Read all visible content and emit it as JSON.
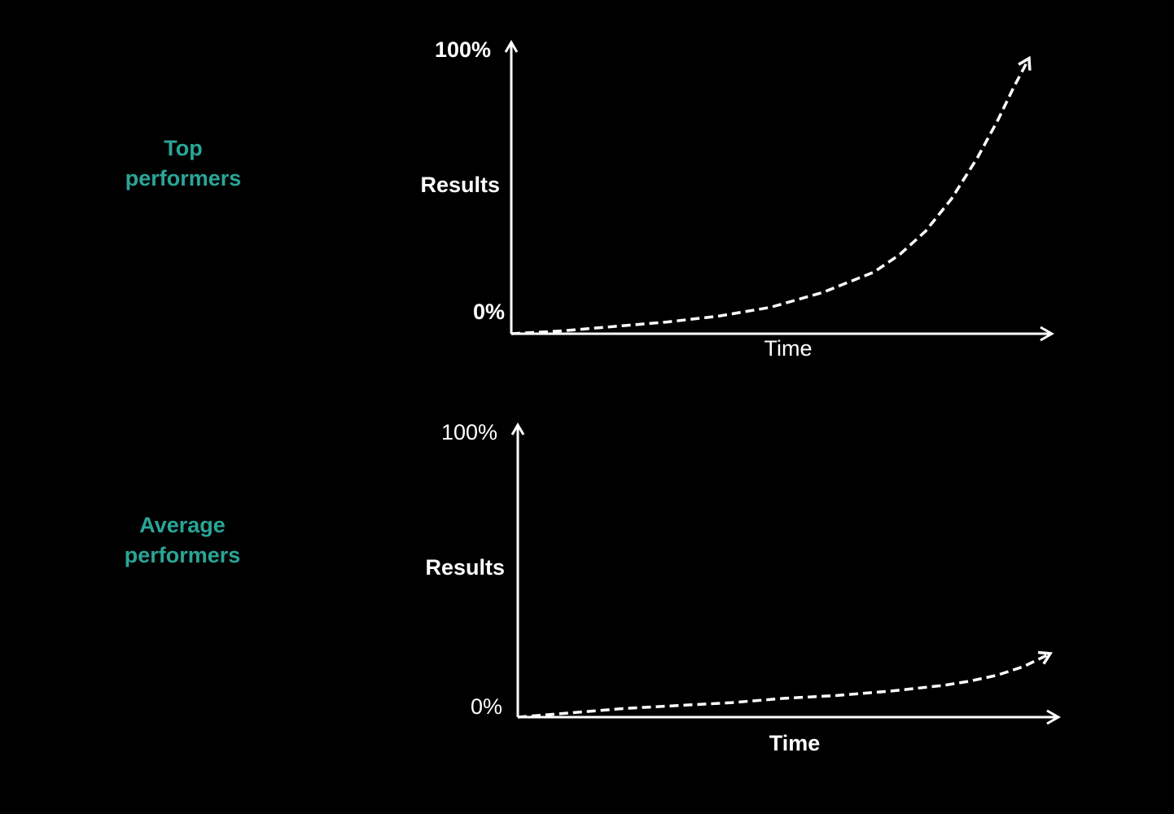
{
  "colors": {
    "background": "#000000",
    "accent": "#2aa597",
    "foreground": "#ffffff"
  },
  "groups": [
    {
      "label_line1": "Top",
      "label_line2": "performers"
    },
    {
      "label_line1": "Average",
      "label_line2": "performers"
    }
  ],
  "chart_data": [
    {
      "type": "line",
      "xlabel": "Time",
      "ylabel": "Results",
      "y_top_label": "100%",
      "y_bottom_label": "0%",
      "ylim": [
        0,
        100
      ],
      "grid": false,
      "series": [
        {
          "style": "dashed",
          "x": [
            0,
            10,
            20,
            30,
            40,
            50,
            60,
            70,
            75,
            80,
            85,
            90,
            94,
            97,
            100
          ],
          "y": [
            0,
            1,
            2.5,
            4,
            6,
            9,
            14,
            21,
            27,
            35,
            46,
            60,
            73,
            84,
            94
          ]
        }
      ]
    },
    {
      "type": "line",
      "xlabel": "Time",
      "ylabel": "Results",
      "y_top_label": "100%",
      "y_bottom_label": "0%",
      "ylim": [
        0,
        100
      ],
      "grid": false,
      "series": [
        {
          "style": "dashed",
          "x": [
            0,
            10,
            20,
            30,
            40,
            50,
            60,
            70,
            80,
            85,
            90,
            95,
            100
          ],
          "y": [
            0,
            1.5,
            3,
            4,
            5,
            6.5,
            7.5,
            9,
            11,
            12.5,
            14.5,
            17.5,
            22
          ]
        }
      ]
    }
  ]
}
